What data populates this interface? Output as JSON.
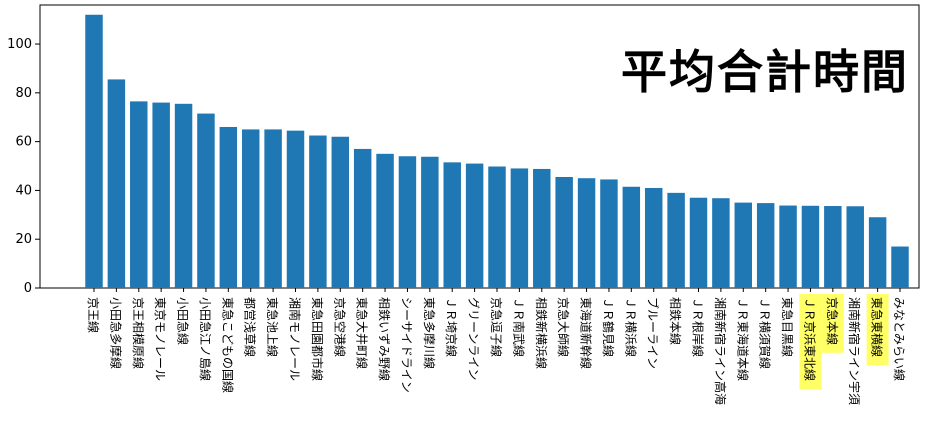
{
  "overlay_text": "平均合計時間",
  "colors": {
    "bar": "#1f77b4",
    "highlight": "#ffff66"
  },
  "chart_data": {
    "type": "bar",
    "title": "",
    "xlabel": "",
    "ylabel": "",
    "ylim": [
      0,
      116
    ],
    "yticks": [
      0,
      20,
      40,
      60,
      80,
      100
    ],
    "categories": [
      "京王線",
      "小田急多摩線",
      "京王相模原線",
      "東京モノレール",
      "小田急線",
      "小田急江ノ島線",
      "東急こどもの国線",
      "都営浅草線",
      "東急池上線",
      "湘南モノレール",
      "東急田園都市線",
      "京急空港線",
      "東急大井町線",
      "相鉄いずみ野線",
      "シーサイドライン",
      "東急多摩川線",
      "ＪＲ埼京線",
      "グリーンライン",
      "京急逗子線",
      "ＪＲ南武線",
      "相鉄新横浜線",
      "京急大師線",
      "東海道新幹線",
      "ＪＲ鶴見線",
      "ＪＲ横浜線",
      "ブルーライン",
      "相鉄本線",
      "ＪＲ根岸線",
      "湘南新宿ライン高海",
      "ＪＲ東海道本線",
      "ＪＲ横須賀線",
      "東急目黒線",
      "ＪＲ京浜東北線",
      "京急本線",
      "湘南新宿ライン宇須",
      "東急東横線",
      "みなとみらい線"
    ],
    "values": [
      112,
      85.5,
      76.5,
      76,
      75.5,
      71.5,
      66,
      65,
      65,
      64.5,
      62.5,
      62,
      57,
      55,
      54,
      53.8,
      51.5,
      51,
      49.8,
      49,
      48.8,
      45.5,
      45,
      44.5,
      41.5,
      41,
      39,
      37,
      36.8,
      35,
      34.8,
      33.8,
      33.7,
      33.6,
      33.5,
      29,
      17
    ],
    "highlighted": [
      "ＪＲ京浜東北線",
      "京急本線",
      "東急東横線"
    ]
  }
}
